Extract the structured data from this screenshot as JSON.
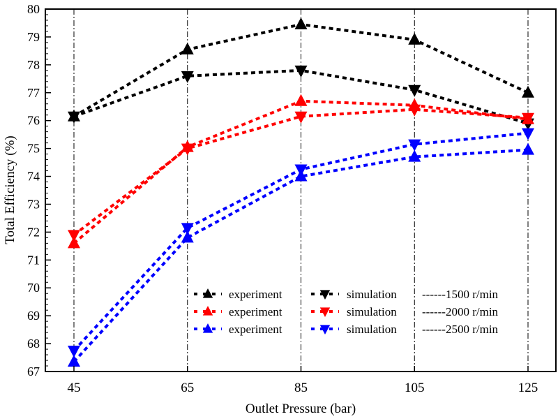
{
  "chart_data": {
    "type": "line",
    "title": "",
    "xlabel": "Outlet Pressure (bar)",
    "ylabel": "Total Efficiency (%)",
    "x": [
      45,
      65,
      85,
      105,
      125
    ],
    "xticks": [
      "45",
      "65",
      "85",
      "105",
      "125"
    ],
    "ylim": [
      67,
      80
    ],
    "yticks": [
      "67",
      "68",
      "69",
      "70",
      "71",
      "72",
      "73",
      "74",
      "75",
      "76",
      "77",
      "78",
      "79",
      "80"
    ],
    "grid": "vertical dash-dot lines at x ticks",
    "legend_position": "bottom-right",
    "series": [
      {
        "name": "experiment",
        "group": "1500 r/min",
        "marker": "triangle-up",
        "color": "#000000",
        "values": [
          76.15,
          78.55,
          79.45,
          78.9,
          77.0
        ]
      },
      {
        "name": "simulation",
        "group": "1500 r/min",
        "marker": "triangle-down",
        "color": "#000000",
        "values": [
          76.15,
          77.6,
          77.8,
          77.1,
          75.9
        ]
      },
      {
        "name": "experiment",
        "group": "2000 r/min",
        "marker": "triangle-up",
        "color": "#ff0000",
        "values": [
          71.6,
          75.05,
          76.7,
          76.55,
          76.05
        ]
      },
      {
        "name": "simulation",
        "group": "2000 r/min",
        "marker": "triangle-down",
        "color": "#ff0000",
        "values": [
          71.9,
          75.0,
          76.15,
          76.4,
          76.1
        ]
      },
      {
        "name": "experiment",
        "group": "2500 r/min",
        "marker": "triangle-up",
        "color": "#0000ff",
        "values": [
          67.35,
          71.8,
          74.0,
          74.7,
          74.95
        ]
      },
      {
        "name": "simulation",
        "group": "2500 r/min",
        "marker": "triangle-down",
        "color": "#0000ff",
        "values": [
          67.75,
          72.15,
          74.25,
          75.15,
          75.55
        ]
      }
    ],
    "legend": {
      "rows": [
        {
          "exp": "experiment",
          "sim": "simulation",
          "speed": "------1500 r/min",
          "color": "#000000"
        },
        {
          "exp": "experiment",
          "sim": "simulation",
          "speed": "------2000 r/min",
          "color": "#ff0000"
        },
        {
          "exp": "experiment",
          "sim": "simulation",
          "speed": "------2500 r/min",
          "color": "#0000ff"
        }
      ]
    }
  }
}
